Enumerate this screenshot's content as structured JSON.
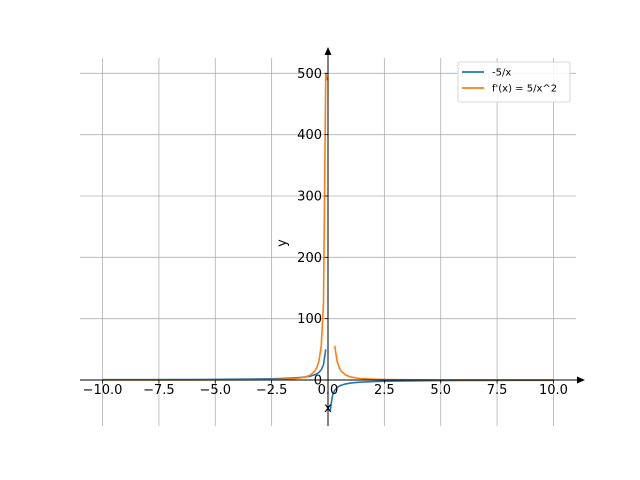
{
  "chart_data": {
    "type": "line",
    "title": "",
    "xlabel": "x",
    "ylabel": "y",
    "xlim": [
      -11,
      11
    ],
    "ylim": [
      -75,
      525
    ],
    "grid": true,
    "legend_placement": "top-right",
    "x_ticks": [
      -10,
      -7.5,
      -5,
      -2.5,
      0,
      2.5,
      5,
      7.5,
      10
    ],
    "x_tick_labels": [
      "−10.0",
      "−7.5",
      "−5.0",
      "−2.5",
      "0.0",
      "2.5",
      "5.0",
      "7.5",
      "10.0"
    ],
    "y_ticks": [
      0,
      100,
      200,
      300,
      400,
      500
    ],
    "y_tick_labels": [
      "0",
      "100",
      "200",
      "300",
      "400",
      "500"
    ],
    "series": [
      {
        "name": "-5/x",
        "color": "#1f77b4",
        "x": [
          -10,
          -9,
          -8,
          -7,
          -6,
          -5,
          -4,
          -3,
          -2.5,
          -2,
          -1.5,
          -1.2,
          -1,
          -0.8,
          -0.6,
          -0.5,
          -0.4,
          -0.3,
          -0.2,
          -0.1,
          null,
          0.1,
          0.2,
          0.3,
          0.4,
          0.5,
          0.6,
          0.8,
          1,
          1.2,
          1.5,
          2,
          2.5,
          3,
          4,
          5,
          6,
          7,
          8,
          9,
          10
        ],
        "y": [
          0.5,
          0.556,
          0.625,
          0.714,
          0.833,
          1,
          1.25,
          1.667,
          2,
          2.5,
          3.333,
          4.167,
          5,
          6.25,
          8.333,
          10,
          12.5,
          16.667,
          25,
          50,
          null,
          -50,
          -25,
          -16.667,
          -12.5,
          -10,
          -8.333,
          -6.25,
          -5,
          -4.167,
          -3.333,
          -2.5,
          -2,
          -1.667,
          -1.25,
          -1,
          -0.833,
          -0.714,
          -0.625,
          -0.556,
          -0.5
        ]
      },
      {
        "name": "f'(x) = 5/x^2",
        "color": "#ff7f0e",
        "x": [
          -10,
          -9,
          -8,
          -7,
          -6,
          -5,
          -4,
          -3,
          -2.5,
          -2,
          -1.5,
          -1.2,
          -1,
          -0.8,
          -0.6,
          -0.5,
          -0.4,
          -0.3,
          -0.2,
          -0.1,
          -0.05,
          -0.02,
          -0.01,
          -0.005,
          0.005,
          null,
          0.3,
          0.4,
          0.5,
          0.6,
          0.8,
          1,
          1.2,
          1.5,
          2,
          2.5,
          3,
          4,
          5,
          6,
          7,
          8,
          9,
          10
        ],
        "y": [
          0.05,
          0.062,
          0.078,
          0.102,
          0.139,
          0.2,
          0.313,
          0.556,
          0.8,
          1.25,
          2.222,
          3.472,
          5,
          7.813,
          13.889,
          20,
          31.25,
          55.556,
          125,
          500,
          490,
          490,
          490,
          490,
          490,
          null,
          55.556,
          31.25,
          20,
          13.889,
          7.813,
          5,
          3.472,
          2.222,
          1.25,
          0.8,
          0.556,
          0.313,
          0.2,
          0.139,
          0.102,
          0.078,
          0.062,
          0.05
        ]
      }
    ]
  }
}
